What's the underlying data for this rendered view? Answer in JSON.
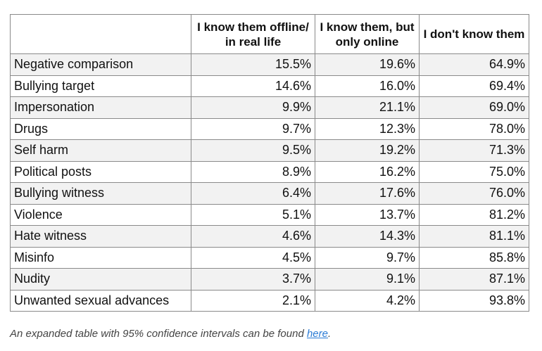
{
  "table": {
    "columns": [
      "I know them offline/ in real life",
      "I know them, but only online",
      "I don't know them"
    ],
    "rows": [
      [
        "Negative comparison",
        "15.5%",
        "19.6%",
        "64.9%"
      ],
      [
        "Bullying target",
        "14.6%",
        "16.0%",
        "69.4%"
      ],
      [
        "Impersonation",
        "9.9%",
        "21.1%",
        "69.0%"
      ],
      [
        "Drugs",
        "9.7%",
        "12.3%",
        "78.0%"
      ],
      [
        "Self harm",
        "9.5%",
        "19.2%",
        "71.3%"
      ],
      [
        "Political posts",
        "8.9%",
        "16.2%",
        "75.0%"
      ],
      [
        "Bullying witness",
        "6.4%",
        "17.6%",
        "76.0%"
      ],
      [
        "Violence",
        "5.1%",
        "13.7%",
        "81.2%"
      ],
      [
        "Hate witness",
        "4.6%",
        "14.3%",
        "81.1%"
      ],
      [
        "Misinfo",
        "4.5%",
        "9.7%",
        "85.8%"
      ],
      [
        "Nudity",
        "3.7%",
        "9.1%",
        "87.1%"
      ],
      [
        "Unwanted sexual advances",
        "2.1%",
        "4.2%",
        "93.8%"
      ]
    ]
  },
  "caption": {
    "text": "An expanded table with 95% confidence intervals can be found ",
    "link": "here",
    "end": "."
  }
}
